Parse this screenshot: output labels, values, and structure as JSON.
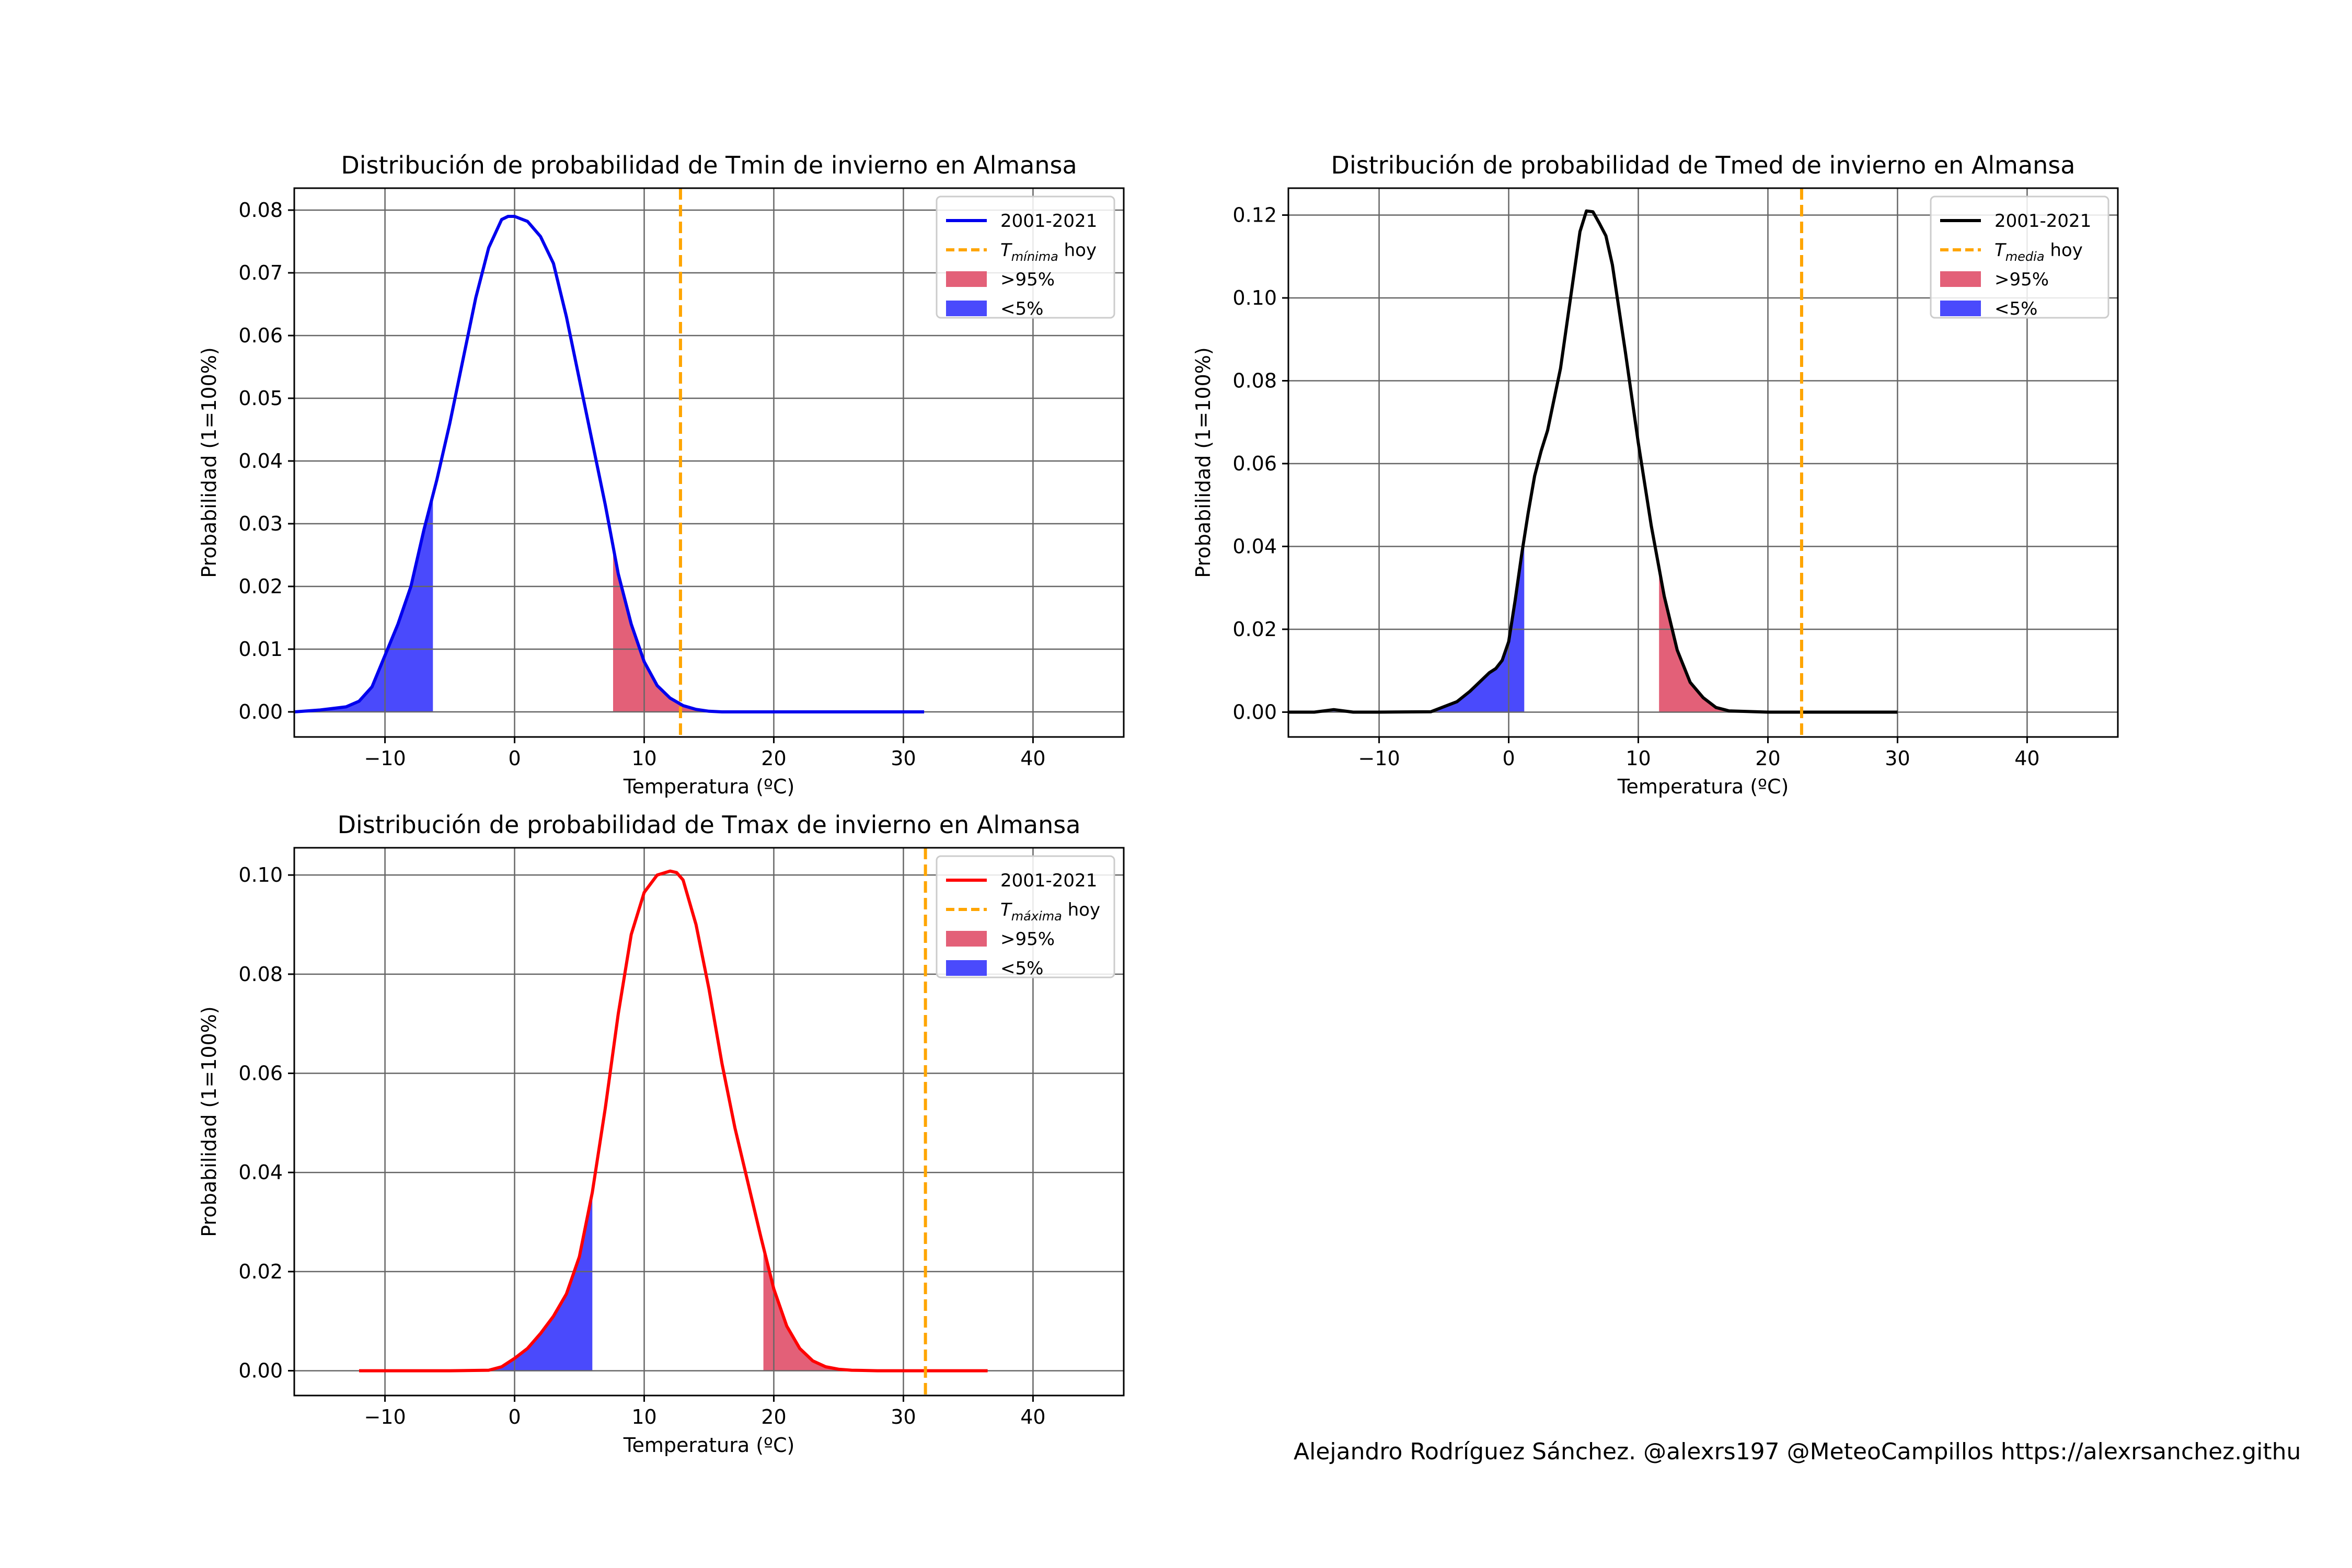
{
  "footer": "Alejandro Rodríguez Sánchez. @alexrs197 @MeteoCampillos   https://alexrsanchez.githu",
  "chart_data": [
    {
      "id": "tmin",
      "type": "line",
      "title": "Distribución de probabilidad de Tmin de invierno en Almansa",
      "xlabel": "Temperatura (ºC)",
      "ylabel": "Probabilidad (1=100%)",
      "xlim": [
        -17,
        47
      ],
      "ylim": [
        -0.004,
        0.0835
      ],
      "xticks": [
        -10,
        0,
        10,
        20,
        30,
        40
      ],
      "xtick_labels": [
        "−10",
        "0",
        "10",
        "20",
        "30",
        "40"
      ],
      "yticks": [
        0,
        0.01,
        0.02,
        0.03,
        0.04,
        0.05,
        0.06,
        0.07,
        0.08
      ],
      "ytick_labels": [
        "0.00",
        "0.01",
        "0.02",
        "0.03",
        "0.04",
        "0.05",
        "0.06",
        "0.07",
        "0.08"
      ],
      "grid": true,
      "legend_position": "upper right",
      "line_color": "#0000ee",
      "today_value": 12.8,
      "low_threshold": -6.3,
      "high_threshold": 7.6,
      "series": [
        {
          "name": "2001-2021",
          "x": [
            -17,
            -15,
            -13,
            -12,
            -11,
            -10,
            -9,
            -8,
            -7,
            -6,
            -5,
            -4,
            -3,
            -2,
            -1,
            -0.5,
            0,
            1,
            2,
            3,
            4,
            5,
            6,
            7,
            8,
            9,
            10,
            11,
            12,
            13,
            14,
            15,
            16,
            18,
            20,
            25,
            31.6
          ],
          "y": [
            0.0,
            0.0003,
            0.0008,
            0.0017,
            0.004,
            0.009,
            0.014,
            0.02,
            0.029,
            0.037,
            0.046,
            0.056,
            0.066,
            0.074,
            0.0785,
            0.079,
            0.079,
            0.0782,
            0.0758,
            0.0715,
            0.063,
            0.053,
            0.043,
            0.033,
            0.022,
            0.014,
            0.008,
            0.0042,
            0.0022,
            0.001,
            0.0004,
            0.0001,
            0.0,
            0.0,
            0.0,
            0.0,
            0.0
          ]
        }
      ],
      "legend": [
        {
          "kind": "line",
          "color": "#0000ee",
          "label": "2001-2021"
        },
        {
          "kind": "dash",
          "color": "#ffa500",
          "label": "T",
          "sub": "mínima",
          "suffix": " hoy"
        },
        {
          "kind": "patch",
          "color": "#e36078",
          "label": ">95%"
        },
        {
          "kind": "patch",
          "color": "#4a4afc",
          "label": "<5%"
        }
      ]
    },
    {
      "id": "tmed",
      "type": "line",
      "title": "Distribución de probabilidad de Tmed de invierno en Almansa",
      "xlabel": "Temperatura (ºC)",
      "ylabel": "Probabilidad (1=100%)",
      "xlim": [
        -17,
        47
      ],
      "ylim": [
        -0.006,
        0.1265
      ],
      "xticks": [
        -10,
        0,
        10,
        20,
        30,
        40
      ],
      "xtick_labels": [
        "−10",
        "0",
        "10",
        "20",
        "30",
        "40"
      ],
      "yticks": [
        0,
        0.02,
        0.04,
        0.06,
        0.08,
        0.1,
        0.12
      ],
      "ytick_labels": [
        "0.00",
        "0.02",
        "0.04",
        "0.06",
        "0.08",
        "0.10",
        "0.12"
      ],
      "grid": true,
      "legend_position": "upper right",
      "line_color": "#000000",
      "today_value": 22.6,
      "low_threshold": 1.2,
      "high_threshold": 11.6,
      "series": [
        {
          "name": "2001-2021",
          "x": [
            -17,
            -15,
            -13.5,
            -12,
            -10,
            -6,
            -4,
            -3,
            -2,
            -1.5,
            -1,
            -0.5,
            0,
            0.5,
            1,
            1.5,
            2,
            2.5,
            3,
            4,
            5,
            5.5,
            6,
            6.5,
            7,
            7.5,
            8,
            9,
            10,
            11,
            12,
            13,
            14,
            15,
            16,
            17,
            20,
            25,
            30
          ],
          "y": [
            0.0,
            0.0,
            0.0006,
            0.0,
            0.0,
            0.0001,
            0.0025,
            0.005,
            0.008,
            0.0095,
            0.0105,
            0.0125,
            0.017,
            0.027,
            0.038,
            0.048,
            0.057,
            0.063,
            0.068,
            0.083,
            0.105,
            0.116,
            0.121,
            0.1208,
            0.118,
            0.115,
            0.108,
            0.087,
            0.065,
            0.045,
            0.028,
            0.015,
            0.0072,
            0.0035,
            0.0011,
            0.0003,
            0.0,
            0.0,
            0.0
          ]
        }
      ],
      "legend": [
        {
          "kind": "line",
          "color": "#000000",
          "label": "2001-2021"
        },
        {
          "kind": "dash",
          "color": "#ffa500",
          "label": "T",
          "sub": "media",
          "suffix": " hoy"
        },
        {
          "kind": "patch",
          "color": "#e36078",
          "label": ">95%"
        },
        {
          "kind": "patch",
          "color": "#4a4afc",
          "label": "<5%"
        }
      ]
    },
    {
      "id": "tmax",
      "type": "line",
      "title": "Distribución de probabilidad de Tmax de invierno en Almansa",
      "xlabel": "Temperatura (ºC)",
      "ylabel": "Probabilidad (1=100%)",
      "xlim": [
        -17,
        47
      ],
      "ylim": [
        -0.005,
        0.1055
      ],
      "xticks": [
        -10,
        0,
        10,
        20,
        30,
        40
      ],
      "xtick_labels": [
        "−10",
        "0",
        "10",
        "20",
        "30",
        "40"
      ],
      "yticks": [
        0,
        0.02,
        0.04,
        0.06,
        0.08,
        0.1
      ],
      "ytick_labels": [
        "0.00",
        "0.02",
        "0.04",
        "0.06",
        "0.08",
        "0.10"
      ],
      "grid": true,
      "legend_position": "upper right",
      "line_color": "#ff0000",
      "today_value": 31.7,
      "low_threshold": 6.0,
      "high_threshold": 19.2,
      "series": [
        {
          "name": "2001-2021",
          "x": [
            -12,
            -5,
            -2,
            -1,
            0,
            1,
            2,
            3,
            4,
            5,
            6,
            7,
            8,
            9,
            10,
            11,
            12,
            12.5,
            13,
            14,
            15,
            16,
            17,
            18,
            19,
            20,
            21,
            22,
            23,
            24,
            25,
            26,
            28,
            30,
            36.5
          ],
          "y": [
            0.0,
            0.0,
            0.0001,
            0.0008,
            0.0025,
            0.0045,
            0.0075,
            0.011,
            0.0155,
            0.023,
            0.036,
            0.053,
            0.072,
            0.088,
            0.0965,
            0.1,
            0.1008,
            0.1005,
            0.099,
            0.09,
            0.077,
            0.062,
            0.049,
            0.038,
            0.027,
            0.0165,
            0.009,
            0.0045,
            0.002,
            0.0008,
            0.0003,
            0.0001,
            0.0,
            0.0,
            0.0
          ]
        }
      ],
      "legend": [
        {
          "kind": "line",
          "color": "#ff0000",
          "label": "2001-2021"
        },
        {
          "kind": "dash",
          "color": "#ffa500",
          "label": "T",
          "sub": "máxima",
          "suffix": " hoy"
        },
        {
          "kind": "patch",
          "color": "#e36078",
          "label": ">95%"
        },
        {
          "kind": "patch",
          "color": "#4a4afc",
          "label": "<5%"
        }
      ]
    }
  ],
  "colors": {
    "today_line": "#ffa500",
    "high_fill": "#e36078",
    "low_fill": "#4a4afc",
    "grid": "#666666"
  }
}
